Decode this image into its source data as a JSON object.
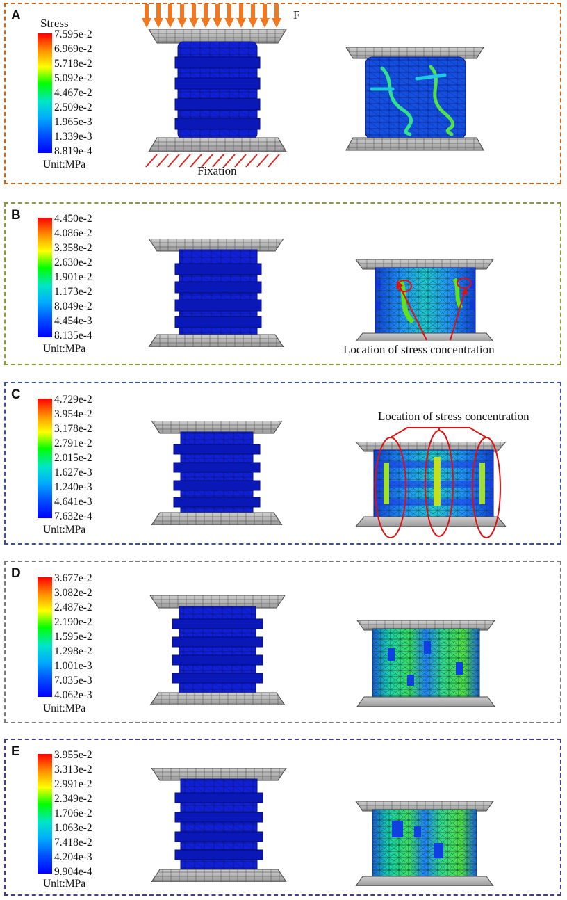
{
  "colorbar_colors": [
    "#ff0000",
    "#ff8c00",
    "#ffff00",
    "#00ff00",
    "#00e6c8",
    "#00aaff",
    "#0050ff",
    "#0000ff"
  ],
  "panels": [
    {
      "letter": "A",
      "border_color": "#c8651b",
      "stress_title": "Stress",
      "ticks": [
        "7.595e-2",
        "6.969e-2",
        "5.718e-2",
        "5.092e-2",
        "4.467e-2",
        "2.509e-2",
        "1.965e-3",
        "1.339e-3",
        "8.819e-4"
      ],
      "unit": "Unit:MPa",
      "force_label": "F",
      "fixation_label": "Fixation",
      "force_arrow_color": "#f07820",
      "fixation_hatch_color": "#dd2222"
    },
    {
      "letter": "B",
      "border_color": "#8a9a3a",
      "ticks": [
        "4.450e-2",
        "4.086e-2",
        "3.358e-2",
        "2.630e-2",
        "1.901e-2",
        "1.173e-2",
        "8.049e-2",
        "4.454e-3",
        "8.135e-4"
      ],
      "unit": "Unit:MPa",
      "annotation": "Location of stress concentration",
      "annotation_color": "#dd1111"
    },
    {
      "letter": "C",
      "border_color": "#3a4fa0",
      "ticks": [
        "4.729e-2",
        "3.954e-2",
        "3.178e-2",
        "2.791e-2",
        "2.015e-2",
        "1.627e-3",
        "1.240e-3",
        "4.641e-3",
        "7.632e-4"
      ],
      "unit": "Unit:MPa",
      "annotation": "Location of stress concentration",
      "annotation_color": "#dd1111"
    },
    {
      "letter": "D",
      "border_color": "#7a7a7a",
      "ticks": [
        "3.677e-2",
        "3.082e-2",
        "2.487e-2",
        "2.190e-2",
        "1.595e-2",
        "1.298e-2",
        "1.001e-3",
        "7.035e-3",
        "4.062e-3"
      ],
      "unit": "Unit:MPa"
    },
    {
      "letter": "E",
      "border_color": "#4a3a8a",
      "ticks": [
        "3.955e-2",
        "3.313e-2",
        "2.991e-2",
        "2.349e-2",
        "1.706e-2",
        "1.063e-2",
        "7.418e-2",
        "4.204e-3",
        "9.904e-4"
      ],
      "unit": "Unit:MPa"
    }
  ]
}
